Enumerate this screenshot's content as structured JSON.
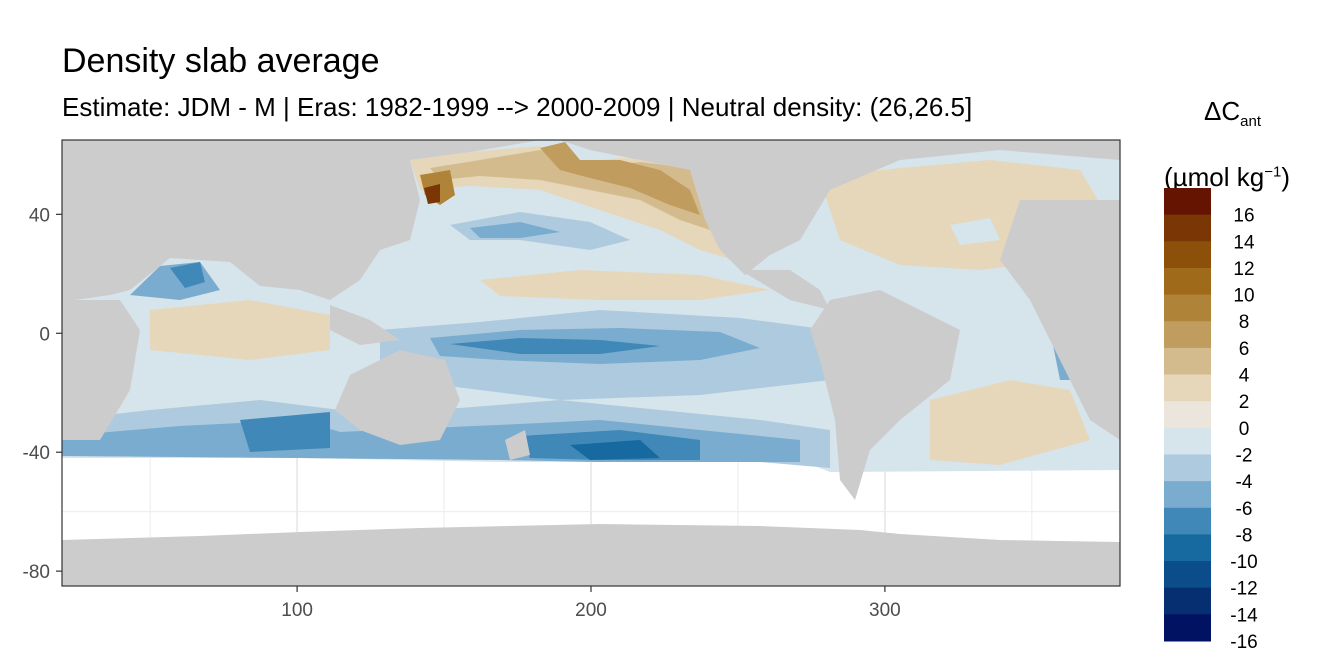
{
  "chart_data": {
    "type": "heatmap",
    "title": "Density slab average",
    "subtitle": "Estimate: JDM - M | Eras: 1982-1999 --> 2000-2009 | Neutral density: (26,26.5]",
    "xlim": [
      20,
      380
    ],
    "ylim": [
      -85,
      65
    ],
    "x_ticks": [
      100,
      200,
      300
    ],
    "y_ticks": [
      40,
      0,
      -40,
      -80
    ],
    "grid": true,
    "legend_placement": "right",
    "legend": {
      "title_main": "ΔC",
      "title_sub": "ant",
      "unit_prefix": "(µmol kg",
      "unit_sup": "−1",
      "unit_suffix": ")",
      "bins": [
        {
          "label": "16",
          "color": "#651401"
        },
        {
          "label": "14",
          "color": "#7a3604"
        },
        {
          "label": "12",
          "color": "#8c500a"
        },
        {
          "label": "10",
          "color": "#9f6a1a"
        },
        {
          "label": "8",
          "color": "#b08438"
        },
        {
          "label": "6",
          "color": "#c09c5e"
        },
        {
          "label": "4",
          "color": "#d4bb8d"
        },
        {
          "label": "2",
          "color": "#e6d7bb"
        },
        {
          "label": "0",
          "color": "#ece5dc"
        },
        {
          "label": "-2",
          "color": "#d6e4ec"
        },
        {
          "label": "-4",
          "color": "#adcade"
        },
        {
          "label": "-6",
          "color": "#79acce"
        },
        {
          "label": "-8",
          "color": "#3f88b7"
        },
        {
          "label": "-10",
          "color": "#176aa0"
        },
        {
          "label": "-12",
          "color": "#0a4d8a"
        },
        {
          "label": "-14",
          "color": "#062f72"
        },
        {
          "label": "-16",
          "color": "#001261"
        }
      ]
    },
    "colors": {
      "land": "#cccccc",
      "no_data": "#ffffff",
      "panel_border": "#333333",
      "grid": "#ebebeb"
    }
  }
}
